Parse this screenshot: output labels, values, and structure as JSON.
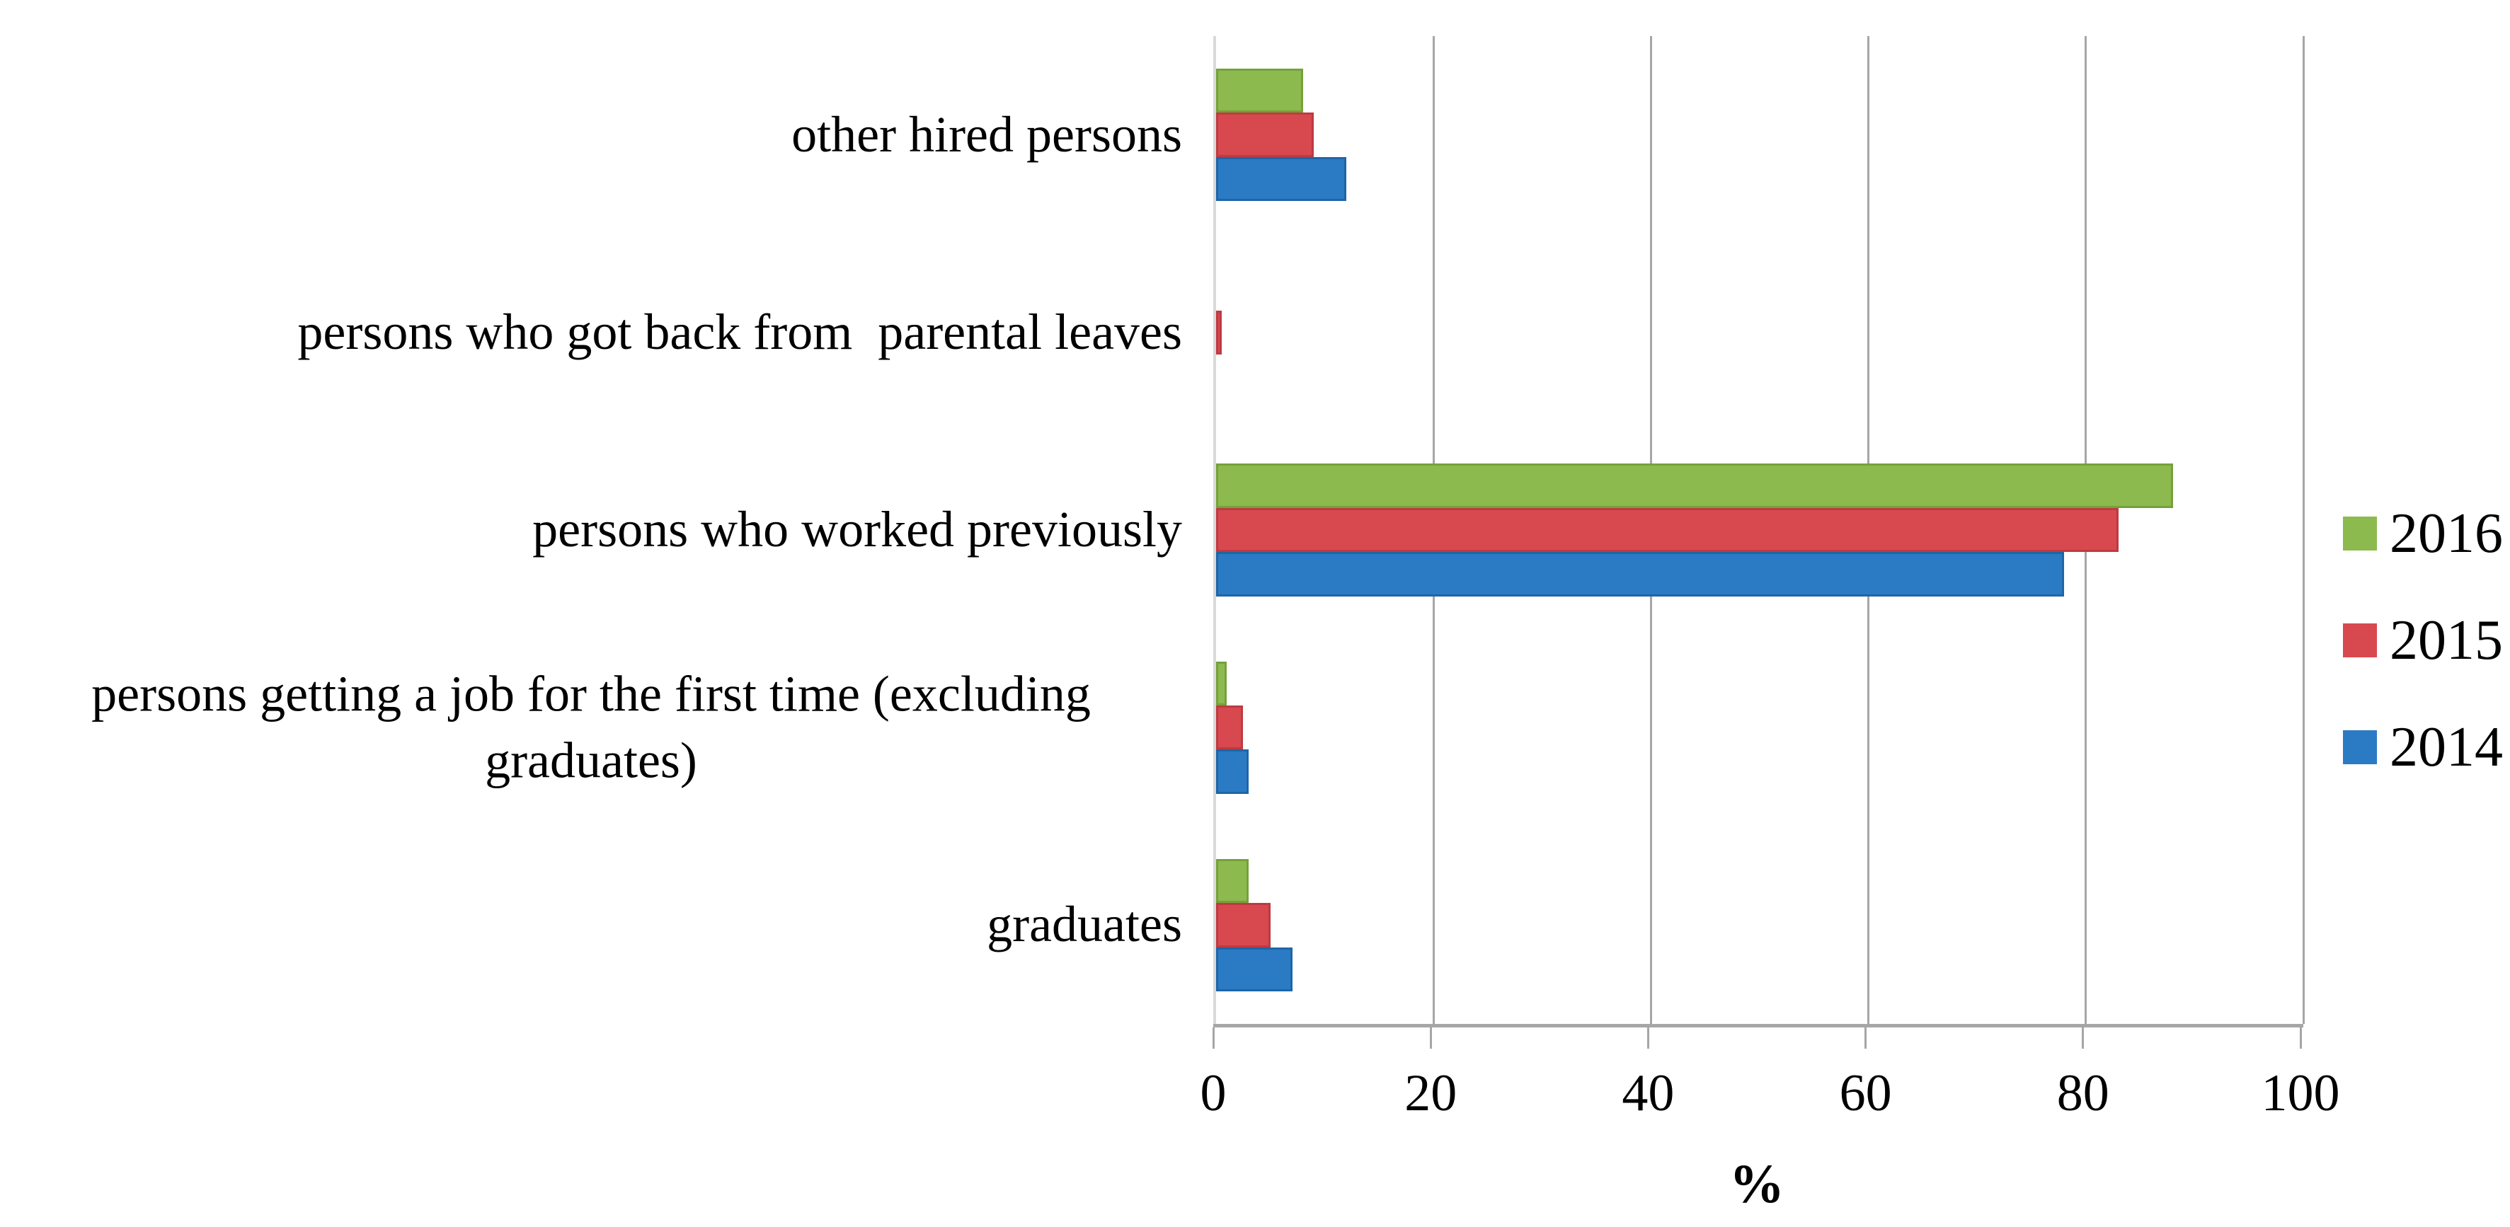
{
  "chart_data": {
    "type": "bar",
    "orientation": "horizontal",
    "title": "",
    "xlabel": "%",
    "ylabel": "",
    "xlim": [
      0,
      100
    ],
    "x_ticks": [
      0,
      20,
      40,
      60,
      80,
      100
    ],
    "x_tick_labels": [
      "0",
      "20",
      "40",
      "60",
      "80",
      "100"
    ],
    "grid": "vertical gridlines at every x tick",
    "legend_position": "right outside plot, stacked vertically",
    "categories": [
      "other hired persons",
      "persons who got back from  parental leaves",
      "persons who worked previously",
      "persons getting a job for the first time (excluding graduates)",
      "graduates"
    ],
    "series": [
      {
        "name": "2016",
        "color": "#8CBA4E",
        "border_color": "#75A13B",
        "values": [
          8,
          0,
          88,
          1,
          3
        ]
      },
      {
        "name": "2015",
        "color": "#D8494F",
        "border_color": "#BE3A42",
        "values": [
          9,
          0.5,
          83,
          2.5,
          5
        ]
      },
      {
        "name": "2014",
        "color": "#2B7BC4",
        "border_color": "#1E65A7",
        "values": [
          12,
          0,
          78,
          3,
          7
        ]
      }
    ]
  },
  "colors": {
    "background": "#FFFFFF",
    "gridline": "#A6A6A6",
    "axis_line": "#A6A6A6",
    "plot_left_border": "#D9D9D9",
    "text": "#000000"
  }
}
